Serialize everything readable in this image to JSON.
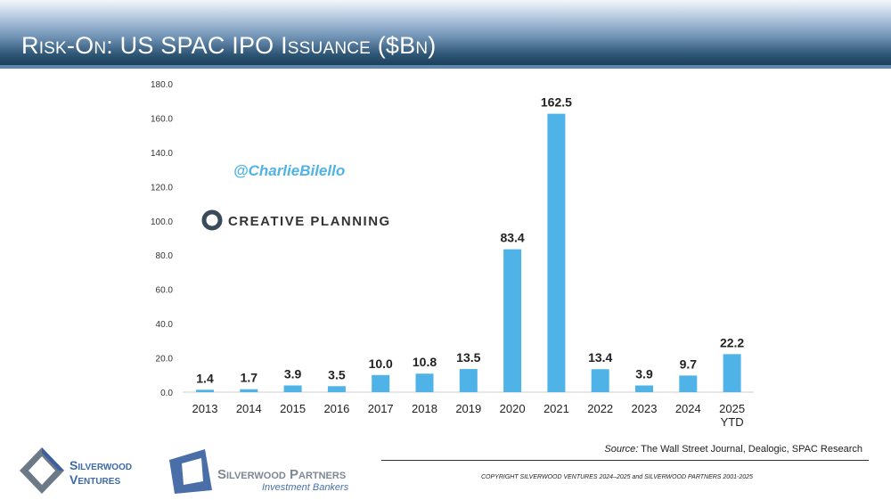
{
  "header": {
    "title": "Risk-On: US SPAC IPO Issuance ($Bn)"
  },
  "watermark": {
    "handle": "@CharlieBilello",
    "brand": "CREATIVE PLANNING"
  },
  "chart_data": {
    "type": "bar",
    "categories": [
      "2013",
      "2014",
      "2015",
      "2016",
      "2017",
      "2018",
      "2019",
      "2020",
      "2021",
      "2022",
      "2023",
      "2024",
      "2025 YTD"
    ],
    "values": [
      1.4,
      1.7,
      3.9,
      3.5,
      10.0,
      10.8,
      13.5,
      83.4,
      162.5,
      13.4,
      3.9,
      9.7,
      22.2
    ],
    "value_labels": [
      "1.4",
      "1.7",
      "3.9",
      "3.5",
      "10.0",
      "10.8",
      "13.5",
      "83.4",
      "162.5",
      "13.4",
      "3.9",
      "9.7",
      "22.2"
    ],
    "ylim": [
      0,
      180
    ],
    "yticks": [
      "0.0",
      "20.0",
      "40.0",
      "60.0",
      "80.0",
      "100.0",
      "120.0",
      "140.0",
      "160.0",
      "180.0"
    ],
    "grid": false,
    "bar_color": "#4fb3e8"
  },
  "footer": {
    "source_label": "Source:",
    "source_text": "The Wall Street Journal, Dealogic, SPAC Research",
    "copyright": "COPYRIGHT SILVERWOOD VENTURES 2024–2025 and SILVERWOOD PARTNERS 2001-2025",
    "logo1": [
      "Silverwood",
      "Ventures"
    ],
    "logo2": {
      "name": "Silverwood Partners",
      "tagline": "Investment Bankers"
    }
  }
}
